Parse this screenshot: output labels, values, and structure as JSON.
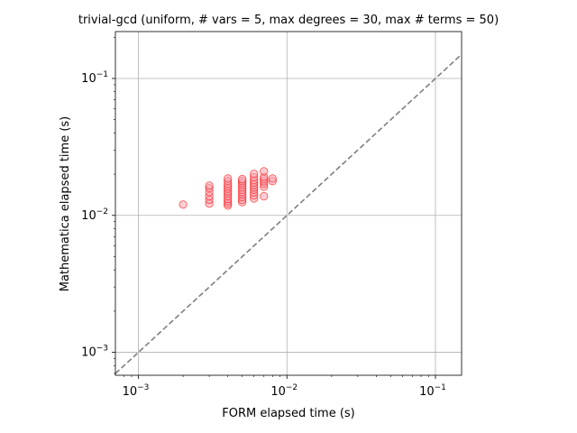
{
  "chart_data": {
    "type": "scatter",
    "title": "trivial-gcd (uniform, # vars = 5, max degrees = 30, max # terms = 50)",
    "xlabel": "FORM elapsed time (s)",
    "ylabel": "Mathematica elapsed time (s)",
    "xscale": "log",
    "yscale": "log",
    "xlim": [
      0.0007,
      0.15
    ],
    "ylim": [
      0.00068,
      0.22
    ],
    "grid": true,
    "x_ticks": [
      {
        "base": "10",
        "exp": "−3",
        "value": 0.001
      },
      {
        "base": "10",
        "exp": "−2",
        "value": 0.01
      },
      {
        "base": "10",
        "exp": "−1",
        "value": 0.1
      }
    ],
    "y_ticks": [
      {
        "base": "10",
        "exp": "−3",
        "value": 0.001
      },
      {
        "base": "10",
        "exp": "−2",
        "value": 0.01
      },
      {
        "base": "10",
        "exp": "−1",
        "value": 0.1
      }
    ],
    "reference_line": {
      "style": "dashed",
      "color": "#7f7f7f",
      "relation": "y = x"
    },
    "marker_edge_color": "#ff0000",
    "marker_face_color": "#f4a6b0",
    "points": [
      {
        "x": 0.002,
        "y": 0.012
      },
      {
        "x": 0.003,
        "y": 0.0122
      },
      {
        "x": 0.003,
        "y": 0.013
      },
      {
        "x": 0.003,
        "y": 0.0138
      },
      {
        "x": 0.003,
        "y": 0.0148
      },
      {
        "x": 0.003,
        "y": 0.0158
      },
      {
        "x": 0.003,
        "y": 0.0165
      },
      {
        "x": 0.004,
        "y": 0.0118
      },
      {
        "x": 0.004,
        "y": 0.0122
      },
      {
        "x": 0.004,
        "y": 0.0127
      },
      {
        "x": 0.004,
        "y": 0.0132
      },
      {
        "x": 0.004,
        "y": 0.0138
      },
      {
        "x": 0.004,
        "y": 0.0144
      },
      {
        "x": 0.004,
        "y": 0.015
      },
      {
        "x": 0.004,
        "y": 0.0157
      },
      {
        "x": 0.004,
        "y": 0.0163
      },
      {
        "x": 0.004,
        "y": 0.017
      },
      {
        "x": 0.004,
        "y": 0.0178
      },
      {
        "x": 0.004,
        "y": 0.0186
      },
      {
        "x": 0.005,
        "y": 0.0125
      },
      {
        "x": 0.005,
        "y": 0.013
      },
      {
        "x": 0.005,
        "y": 0.0136
      },
      {
        "x": 0.005,
        "y": 0.0142
      },
      {
        "x": 0.005,
        "y": 0.0148
      },
      {
        "x": 0.005,
        "y": 0.0154
      },
      {
        "x": 0.005,
        "y": 0.016
      },
      {
        "x": 0.005,
        "y": 0.0166
      },
      {
        "x": 0.005,
        "y": 0.0172
      },
      {
        "x": 0.005,
        "y": 0.0178
      },
      {
        "x": 0.005,
        "y": 0.0184
      },
      {
        "x": 0.006,
        "y": 0.0133
      },
      {
        "x": 0.006,
        "y": 0.014
      },
      {
        "x": 0.006,
        "y": 0.0147
      },
      {
        "x": 0.006,
        "y": 0.0154
      },
      {
        "x": 0.006,
        "y": 0.016
      },
      {
        "x": 0.006,
        "y": 0.0167
      },
      {
        "x": 0.006,
        "y": 0.0174
      },
      {
        "x": 0.006,
        "y": 0.0181
      },
      {
        "x": 0.006,
        "y": 0.019
      },
      {
        "x": 0.006,
        "y": 0.0201
      },
      {
        "x": 0.007,
        "y": 0.0138
      },
      {
        "x": 0.007,
        "y": 0.0162
      },
      {
        "x": 0.007,
        "y": 0.017
      },
      {
        "x": 0.007,
        "y": 0.0177
      },
      {
        "x": 0.007,
        "y": 0.0184
      },
      {
        "x": 0.007,
        "y": 0.0191
      },
      {
        "x": 0.007,
        "y": 0.021
      },
      {
        "x": 0.008,
        "y": 0.0178
      },
      {
        "x": 0.008,
        "y": 0.0186
      }
    ]
  }
}
